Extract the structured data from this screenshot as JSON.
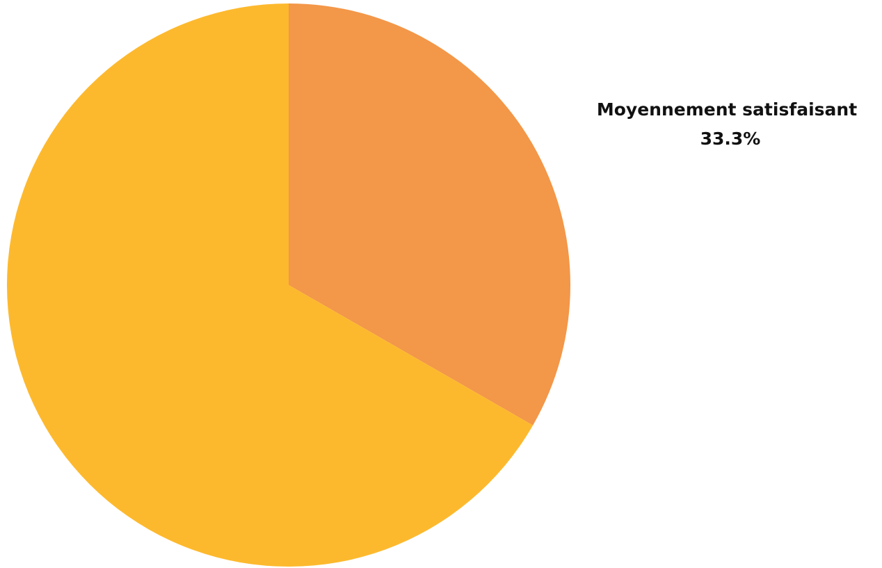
{
  "chart_data": {
    "type": "pie",
    "slices": [
      {
        "value": 33.3,
        "label": "Moyennement satisfaisant",
        "percent_label": "33.3%",
        "color": "#F39748"
      },
      {
        "value": 66.7,
        "label": "",
        "percent_label": "",
        "color": "#FDB92D"
      }
    ],
    "start_angle_deg": 0,
    "direction": "clockwise",
    "legend": "none",
    "title": ""
  }
}
